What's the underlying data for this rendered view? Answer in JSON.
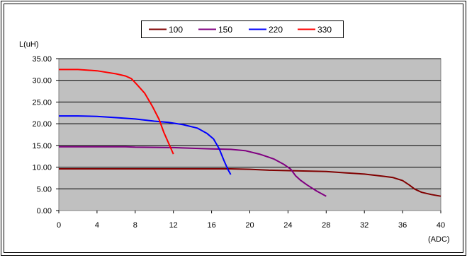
{
  "chart_data": {
    "type": "line",
    "ylabel": "L(uH)",
    "xlabel": "(ADC)",
    "xlim": [
      0,
      40
    ],
    "ylim": [
      0,
      35
    ],
    "x_ticks": [
      "0",
      "4",
      "8",
      "12",
      "16",
      "20",
      "24",
      "28",
      "32",
      "36",
      "40"
    ],
    "y_ticks": [
      "0.00",
      "5.00",
      "10.00",
      "15.00",
      "20.00",
      "25.00",
      "30.00",
      "35.00"
    ],
    "grid": true,
    "legend_position": "top-center",
    "plot_background": "#C0C0C0",
    "series": [
      {
        "name": "100",
        "color": "#800000",
        "points": [
          [
            0,
            9.6
          ],
          [
            4,
            9.6
          ],
          [
            8,
            9.6
          ],
          [
            12,
            9.6
          ],
          [
            16,
            9.6
          ],
          [
            18,
            9.6
          ],
          [
            20,
            9.5
          ],
          [
            22,
            9.3
          ],
          [
            24,
            9.2
          ],
          [
            26,
            9.1
          ],
          [
            28,
            9.0
          ],
          [
            30,
            8.7
          ],
          [
            32,
            8.4
          ],
          [
            34,
            7.9
          ],
          [
            35,
            7.6
          ],
          [
            36,
            6.9
          ],
          [
            36.7,
            5.9
          ],
          [
            37.3,
            4.9
          ],
          [
            38,
            4.2
          ],
          [
            39,
            3.7
          ],
          [
            40,
            3.3
          ]
        ]
      },
      {
        "name": "150",
        "color": "#800080",
        "points": [
          [
            0,
            14.7
          ],
          [
            4,
            14.7
          ],
          [
            7,
            14.7
          ],
          [
            8,
            14.6
          ],
          [
            12,
            14.5
          ],
          [
            16,
            14.2
          ],
          [
            18,
            14.1
          ],
          [
            19.5,
            13.8
          ],
          [
            21,
            13.0
          ],
          [
            22.5,
            11.9
          ],
          [
            23.6,
            10.6
          ],
          [
            24.3,
            9.5
          ],
          [
            24.8,
            8.0
          ],
          [
            25.3,
            7.0
          ],
          [
            26,
            5.9
          ],
          [
            27,
            4.5
          ],
          [
            28,
            3.3
          ]
        ]
      },
      {
        "name": "220",
        "color": "#0000FF",
        "points": [
          [
            0,
            21.8
          ],
          [
            2,
            21.8
          ],
          [
            4,
            21.7
          ],
          [
            6,
            21.4
          ],
          [
            8,
            21.1
          ],
          [
            10,
            20.6
          ],
          [
            11.5,
            20.3
          ],
          [
            13,
            19.8
          ],
          [
            14.5,
            19.0
          ],
          [
            15.5,
            17.8
          ],
          [
            16.2,
            16.5
          ],
          [
            16.8,
            14.2
          ],
          [
            17.3,
            11.5
          ],
          [
            17.7,
            9.5
          ],
          [
            18,
            8.3
          ]
        ]
      },
      {
        "name": "330",
        "color": "#FF0000",
        "points": [
          [
            0,
            32.5
          ],
          [
            2,
            32.5
          ],
          [
            4,
            32.2
          ],
          [
            6,
            31.5
          ],
          [
            7,
            31.0
          ],
          [
            7.6,
            30.4
          ],
          [
            8.2,
            29.0
          ],
          [
            9,
            27.0
          ],
          [
            9.8,
            24.0
          ],
          [
            10.5,
            21.0
          ],
          [
            11,
            18.0
          ],
          [
            11.5,
            15.5
          ],
          [
            12,
            13.0
          ]
        ]
      }
    ]
  }
}
